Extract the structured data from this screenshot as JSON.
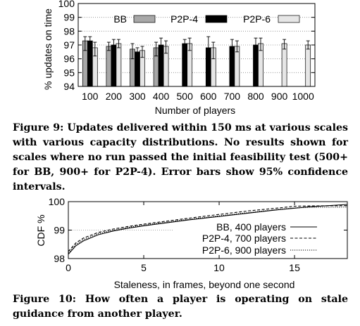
{
  "chart_data": [
    {
      "type": "bar",
      "ylabel": "% updates on time",
      "xlabel": "Number of players",
      "categories": [
        "100",
        "200",
        "300",
        "400",
        "500",
        "600",
        "700",
        "800",
        "900",
        "1000"
      ],
      "ylim": [
        94,
        100
      ],
      "yticks": [
        "94",
        "95",
        "96",
        "97",
        "98",
        "99",
        "100"
      ],
      "grid": true,
      "legend_position": "top",
      "series": [
        {
          "name": "BB",
          "color": "#a8a8a8",
          "values": [
            97.3,
            96.9,
            96.7,
            96.8,
            null,
            null,
            null,
            null,
            null,
            null
          ],
          "err_low": [
            96.6,
            96.6,
            96.0,
            96.2,
            null,
            null,
            null,
            null,
            null,
            null
          ],
          "err_high": [
            97.6,
            97.2,
            97.1,
            97.2,
            null,
            null,
            null,
            null,
            null,
            null
          ]
        },
        {
          "name": "P2P-4",
          "color": "#000000",
          "values": [
            97.3,
            97.0,
            96.5,
            97.0,
            97.1,
            96.8,
            96.9,
            97.0,
            null,
            null
          ],
          "err_low": [
            96.4,
            96.6,
            96.0,
            96.4,
            96.8,
            95.8,
            96.5,
            96.5,
            null,
            null
          ],
          "err_high": [
            97.6,
            97.4,
            96.8,
            97.5,
            97.4,
            97.6,
            97.4,
            97.5,
            null,
            null
          ]
        },
        {
          "name": "P2P-6",
          "color": "#e6e6e6",
          "values": [
            96.8,
            97.1,
            96.6,
            96.9,
            97.1,
            96.8,
            96.9,
            97.1,
            97.1,
            97.0
          ],
          "err_low": [
            96.2,
            96.8,
            96.1,
            96.4,
            96.6,
            96.0,
            96.5,
            96.6,
            96.7,
            96.7
          ],
          "err_high": [
            97.2,
            97.4,
            96.9,
            97.3,
            97.5,
            97.2,
            97.3,
            97.5,
            97.4,
            97.3
          ]
        }
      ]
    },
    {
      "type": "line",
      "ylabel": "CDF %",
      "xlabel": "Staleness, in frames, beyond one second",
      "xlim": [
        0,
        18.5
      ],
      "ylim": [
        98,
        100
      ],
      "xticks": [
        "0",
        "5",
        "10",
        "15"
      ],
      "yticks": [
        "98",
        "99",
        "100"
      ],
      "legend_position": "bottom-right",
      "series": [
        {
          "name": "BB, 400 players",
          "style": "solid",
          "x": [
            0,
            0.5,
            1,
            2,
            3,
            4,
            5,
            6,
            8,
            10,
            12,
            14,
            16,
            18.5
          ],
          "y": [
            98.15,
            98.45,
            98.62,
            98.84,
            98.97,
            99.07,
            99.15,
            99.22,
            99.36,
            99.48,
            99.6,
            99.72,
            99.82,
            99.9
          ]
        },
        {
          "name": "P2P-4, 700 players",
          "style": "dashed",
          "x": [
            0,
            0.5,
            1,
            2,
            3,
            4,
            5,
            6,
            8,
            10,
            12,
            14,
            15,
            16,
            18.5
          ],
          "y": [
            98.25,
            98.55,
            98.72,
            98.92,
            99.04,
            99.13,
            99.21,
            99.28,
            99.42,
            99.55,
            99.68,
            99.78,
            99.84,
            99.85,
            99.86
          ]
        },
        {
          "name": "P2P-6, 900 players",
          "style": "dotted",
          "x": [
            0,
            0.5,
            1,
            2,
            3,
            4,
            5,
            6,
            8,
            10,
            12,
            14,
            15,
            16,
            18.5
          ],
          "y": [
            98.2,
            98.5,
            98.67,
            98.88,
            99.0,
            99.1,
            99.18,
            99.25,
            99.38,
            99.5,
            99.62,
            99.73,
            99.78,
            99.8,
            99.81
          ]
        }
      ]
    }
  ],
  "captions": {
    "fig9_label": "Figure 9:",
    "fig9_text": "Updates delivered within 150 ms at various scales with various capacity distributions. No results shown for scales where no run passed the initial feasibility test (500+ for BB, 900+ for P2P-4). Error bars show 95% confidence intervals.",
    "fig10_label": "Figure 10:",
    "fig10_text": "How often a player is operating on stale guidance from another player."
  }
}
